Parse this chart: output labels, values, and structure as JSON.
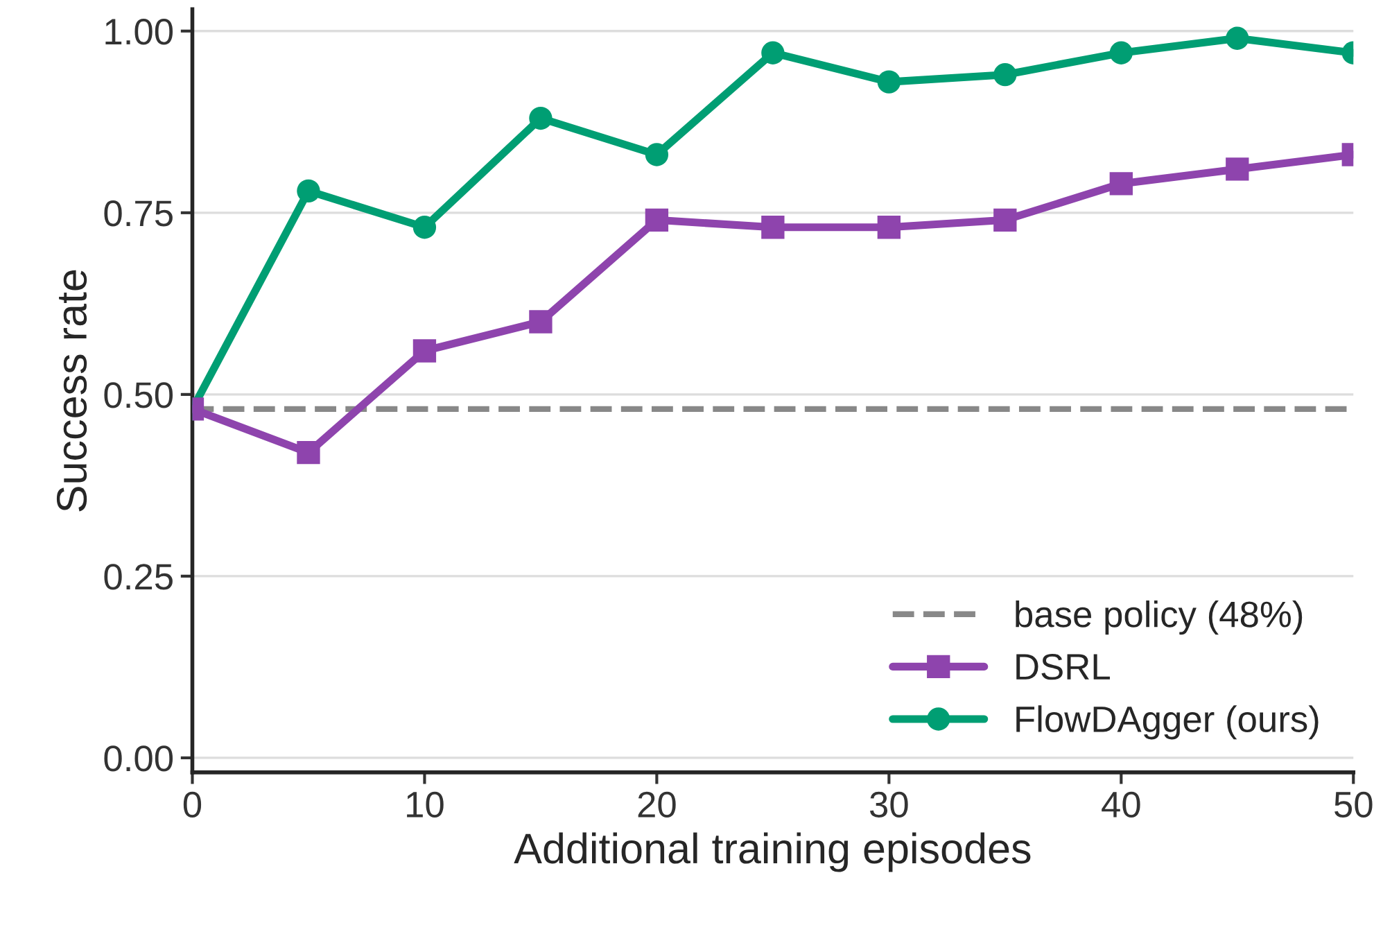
{
  "chart_data": {
    "type": "line",
    "xlabel": "Additional training episodes",
    "ylabel": "Success rate",
    "x": [
      0,
      5,
      10,
      15,
      20,
      25,
      30,
      35,
      40,
      45,
      50
    ],
    "series": [
      {
        "name": "DSRL",
        "color": "#8e44ad",
        "marker": "square",
        "values": [
          0.48,
          0.42,
          0.56,
          0.6,
          0.74,
          0.73,
          0.73,
          0.74,
          0.79,
          0.81,
          0.83
        ]
      },
      {
        "name": "FlowDAgger (ours)",
        "color": "#009e73",
        "marker": "circle",
        "values": [
          0.48,
          0.78,
          0.73,
          0.88,
          0.83,
          0.97,
          0.93,
          0.94,
          0.97,
          0.99,
          0.97
        ]
      }
    ],
    "ref_lines": [
      {
        "axis": "y",
        "value": 0.48,
        "label": "base policy (48%)",
        "color": "#888888",
        "line_style": "dashed"
      }
    ],
    "xlim": [
      0,
      50
    ],
    "xticks": [
      0,
      10,
      20,
      30,
      40,
      50
    ],
    "ylim": [
      -0.02,
      1.03
    ],
    "yticks": [
      {
        "value": 0,
        "label": "0.00"
      },
      {
        "value": 0.25,
        "label": "0.25"
      },
      {
        "value": 0.5,
        "label": "0.50"
      },
      {
        "value": 0.75,
        "label": "0.75"
      },
      {
        "value": 1,
        "label": "1.00"
      }
    ],
    "grid": "y",
    "legend": "bottom right",
    "line_style": "solid"
  }
}
